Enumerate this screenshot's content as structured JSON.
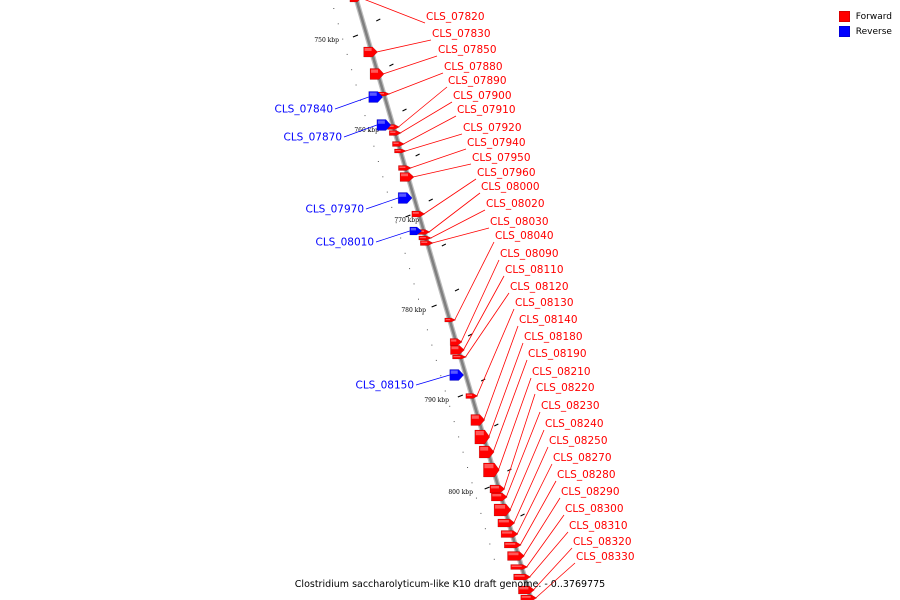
{
  "title": "Clostridium saccharolyticum-like K10 draft genome. - 0..3769775",
  "legend": [
    {
      "label": "Forward",
      "color": "#ff0000"
    },
    {
      "label": "Reverse",
      "color": "#0000ff"
    }
  ],
  "colors": {
    "forward": "#ff0000",
    "reverse": "#0000ff",
    "backbone": "#808080"
  },
  "ticks": [
    "750 kbp",
    "760 kbp",
    "770 kbp",
    "780 kbp",
    "790 kbp",
    "800 kbp"
  ],
  "forward_genes": [
    "CLS_07820",
    "CLS_07830",
    "CLS_07850",
    "CLS_07880",
    "CLS_07890",
    "CLS_07900",
    "CLS_07910",
    "CLS_07920",
    "CLS_07940",
    "CLS_07950",
    "CLS_07960",
    "CLS_08000",
    "CLS_08020",
    "CLS_08030",
    "CLS_08040",
    "CLS_08090",
    "CLS_08110",
    "CLS_08120",
    "CLS_08130",
    "CLS_08140",
    "CLS_08180",
    "CLS_08190",
    "CLS_08210",
    "CLS_08220",
    "CLS_08230",
    "CLS_08240",
    "CLS_08250",
    "CLS_08270",
    "CLS_08280",
    "CLS_08290",
    "CLS_08300",
    "CLS_08310",
    "CLS_08320",
    "CLS_08330"
  ],
  "reverse_genes": [
    "CLS_07840",
    "CLS_07870",
    "CLS_07970",
    "CLS_08010",
    "CLS_08150"
  ]
}
